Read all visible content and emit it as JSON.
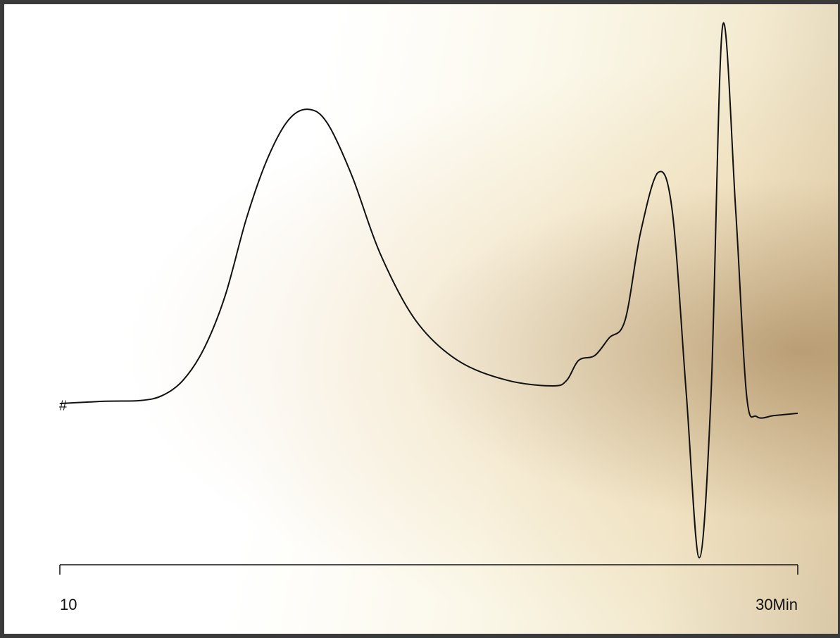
{
  "chart_data": {
    "type": "line",
    "x": [
      10.0,
      11.24,
      12.19,
      12.77,
      13.34,
      13.91,
      14.48,
      15.06,
      15.63,
      16.2,
      16.74,
      17.25,
      17.92,
      18.68,
      19.64,
      20.78,
      22.12,
      23.36,
      23.74,
      24.06,
      24.5,
      24.89,
      25.32,
      25.74,
      26.22,
      26.6,
      26.98,
      27.33,
      27.65,
      27.96,
      28.32,
      28.61,
      28.89,
      29.37,
      30.0
    ],
    "values": [
      -0.4,
      0.2,
      0.4,
      1.7,
      5.8,
      14.3,
      28.3,
      49.0,
      64.9,
      75.2,
      78.0,
      74.3,
      60.2,
      39.6,
      21.8,
      11.1,
      5.8,
      4.3,
      5.8,
      11.1,
      12.4,
      17.1,
      21.8,
      45.2,
      61.2,
      50.8,
      2.1,
      -41.5,
      2.1,
      100,
      50.8,
      2.1,
      -3.9,
      -3.6,
      -3.0
    ],
    "color": "#111111",
    "xlim": [
      10,
      30
    ],
    "xticks": [
      {
        "value": 10,
        "label": "10"
      },
      {
        "value": 30,
        "label": "30Min"
      }
    ],
    "ylim": [
      -43,
      101.5
    ]
  }
}
